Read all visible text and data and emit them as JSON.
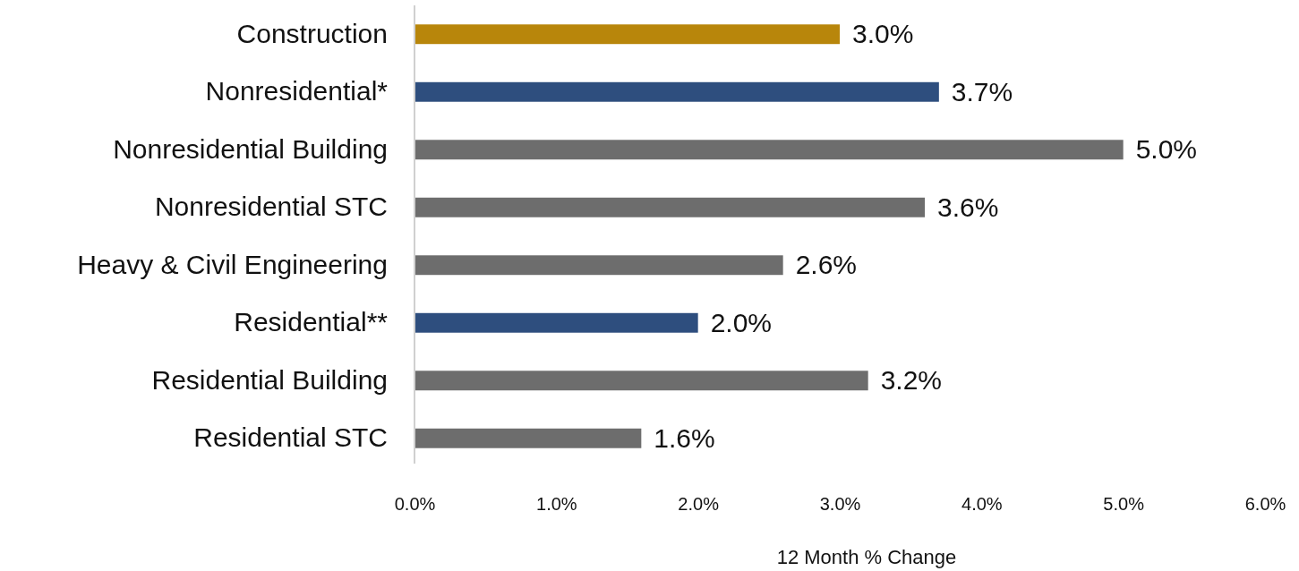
{
  "chart_data": {
    "type": "bar",
    "orientation": "horizontal",
    "xlabel": "12 Month % Change",
    "categories": [
      "Construction",
      "Nonresidential*",
      "Nonresidential Building",
      "Nonresidential STC",
      "Heavy & Civil Engineering",
      "Residential**",
      "Residential Building",
      "Residential STC"
    ],
    "values": [
      3.0,
      3.7,
      5.0,
      3.6,
      2.6,
      2.0,
      3.2,
      1.6
    ],
    "colors": [
      "#b8860b",
      "#2e4e7e",
      "#6d6d6d",
      "#6d6d6d",
      "#6d6d6d",
      "#2e4e7e",
      "#6d6d6d",
      "#6d6d6d"
    ],
    "value_labels": [
      "3.0%",
      "3.7%",
      "5.0%",
      "3.6%",
      "2.6%",
      "2.0%",
      "3.2%",
      "1.6%"
    ],
    "xlim": [
      0,
      6
    ],
    "xticks": [
      {
        "value": 0,
        "label": "0.0%"
      },
      {
        "value": 1,
        "label": "1.0%"
      },
      {
        "value": 2,
        "label": "2.0%"
      },
      {
        "value": 3,
        "label": "3.0%"
      },
      {
        "value": 4,
        "label": "4.0%"
      },
      {
        "value": 5,
        "label": "5.0%"
      },
      {
        "value": 6,
        "label": "6.0%"
      }
    ],
    "grid": false
  }
}
